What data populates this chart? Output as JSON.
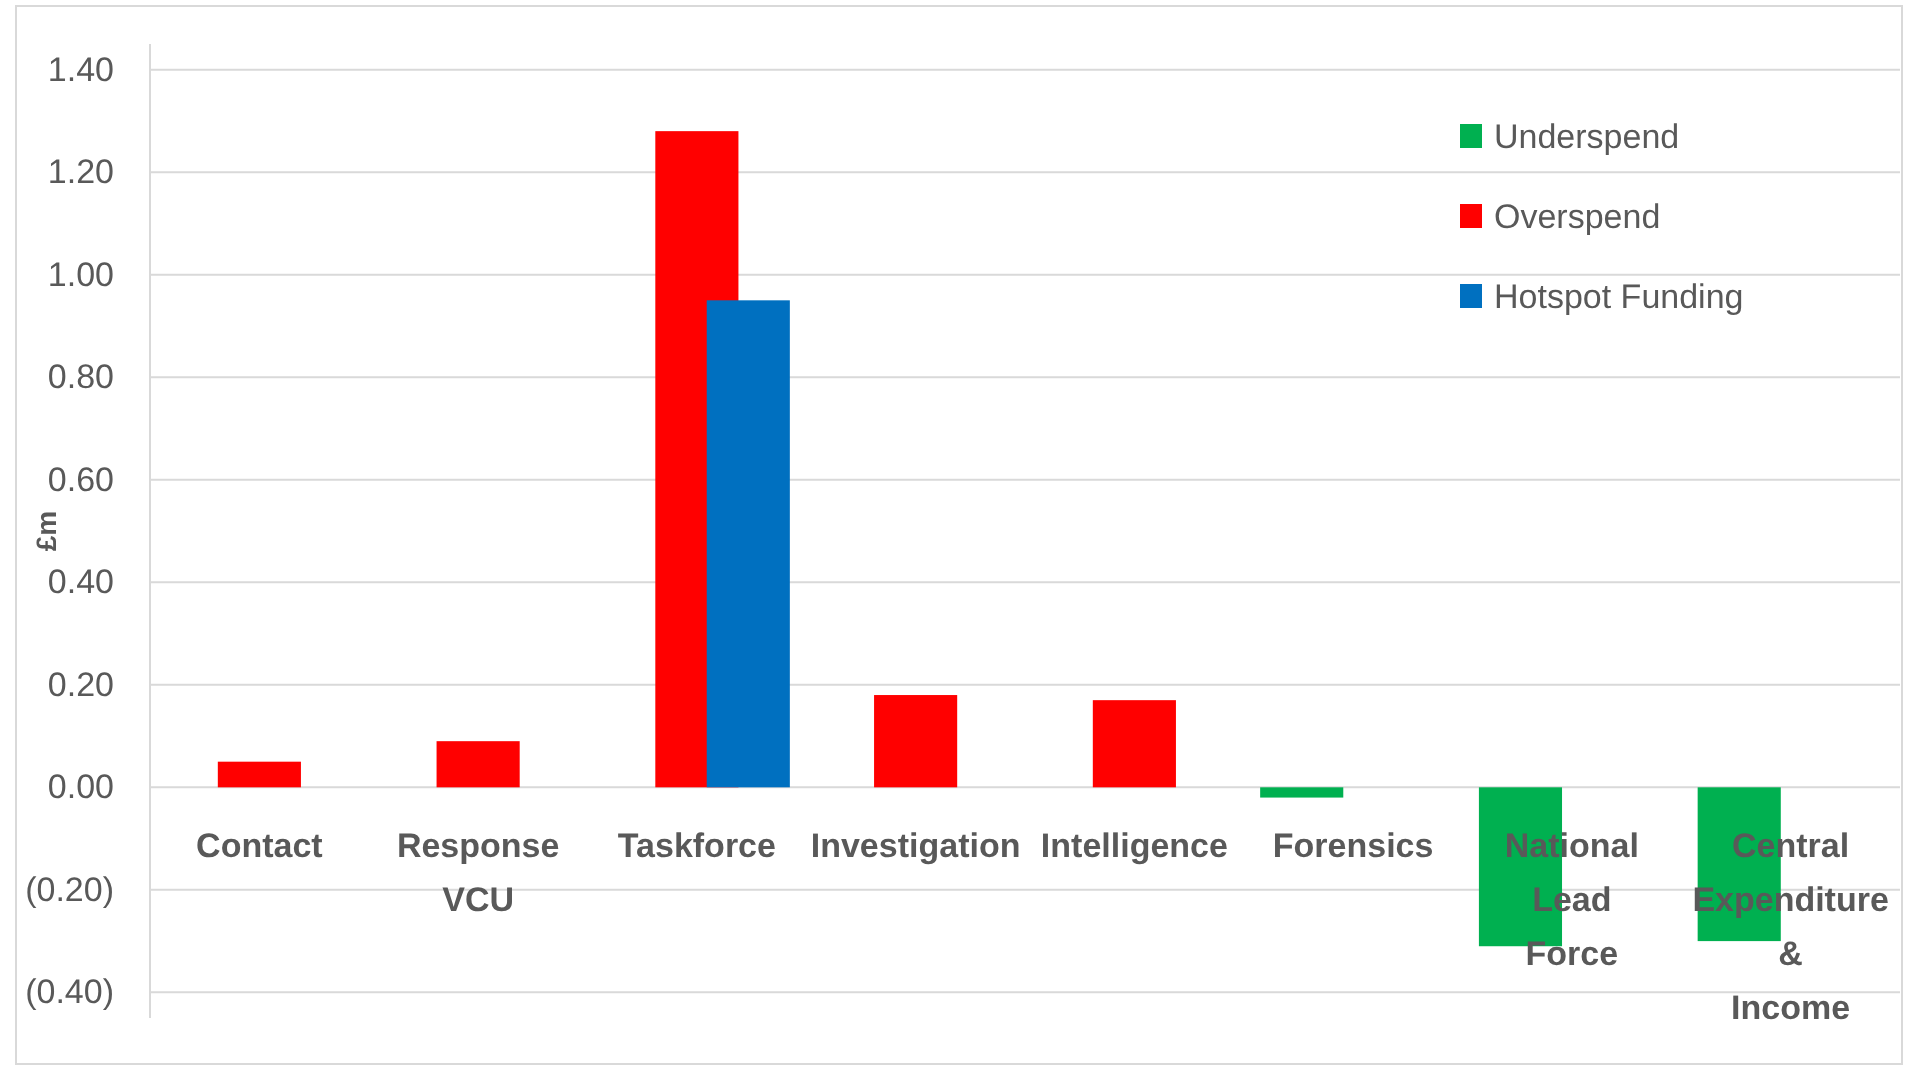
{
  "chart_data": {
    "type": "bar",
    "ylabel": "£m",
    "categories": [
      "Contact",
      "Response VCU",
      "Taskforce",
      "Investigation",
      "Intelligence",
      "Forensics",
      "National Lead Force",
      "Central Expenditure & Income"
    ],
    "series": [
      {
        "name": "Underspend",
        "color": "#00b050",
        "values": [
          null,
          null,
          null,
          null,
          null,
          -0.02,
          -0.31,
          -0.3
        ]
      },
      {
        "name": "Overspend",
        "color": "#ff0000",
        "values": [
          0.05,
          0.09,
          1.28,
          0.18,
          0.17,
          null,
          null,
          null
        ]
      },
      {
        "name": "Hotspot Funding",
        "color": "#0070c0",
        "values": [
          null,
          null,
          0.95,
          null,
          null,
          null,
          null,
          null
        ]
      }
    ],
    "ylim": [
      -0.45,
      1.45
    ],
    "yticks": [
      {
        "value": -0.4,
        "label": "(0.40)"
      },
      {
        "value": -0.2,
        "label": "(0.20)"
      },
      {
        "value": 0,
        "label": "0.00"
      },
      {
        "value": 0.2,
        "label": "0.20"
      },
      {
        "value": 0.4,
        "label": "0.40"
      },
      {
        "value": 0.6,
        "label": "0.60"
      },
      {
        "value": 0.8,
        "label": "0.80"
      },
      {
        "value": 1,
        "label": "1.00"
      },
      {
        "value": 1.2,
        "label": "1.20"
      },
      {
        "value": 1.4,
        "label": "1.40"
      }
    ],
    "grid": "y",
    "legend": "top right"
  }
}
